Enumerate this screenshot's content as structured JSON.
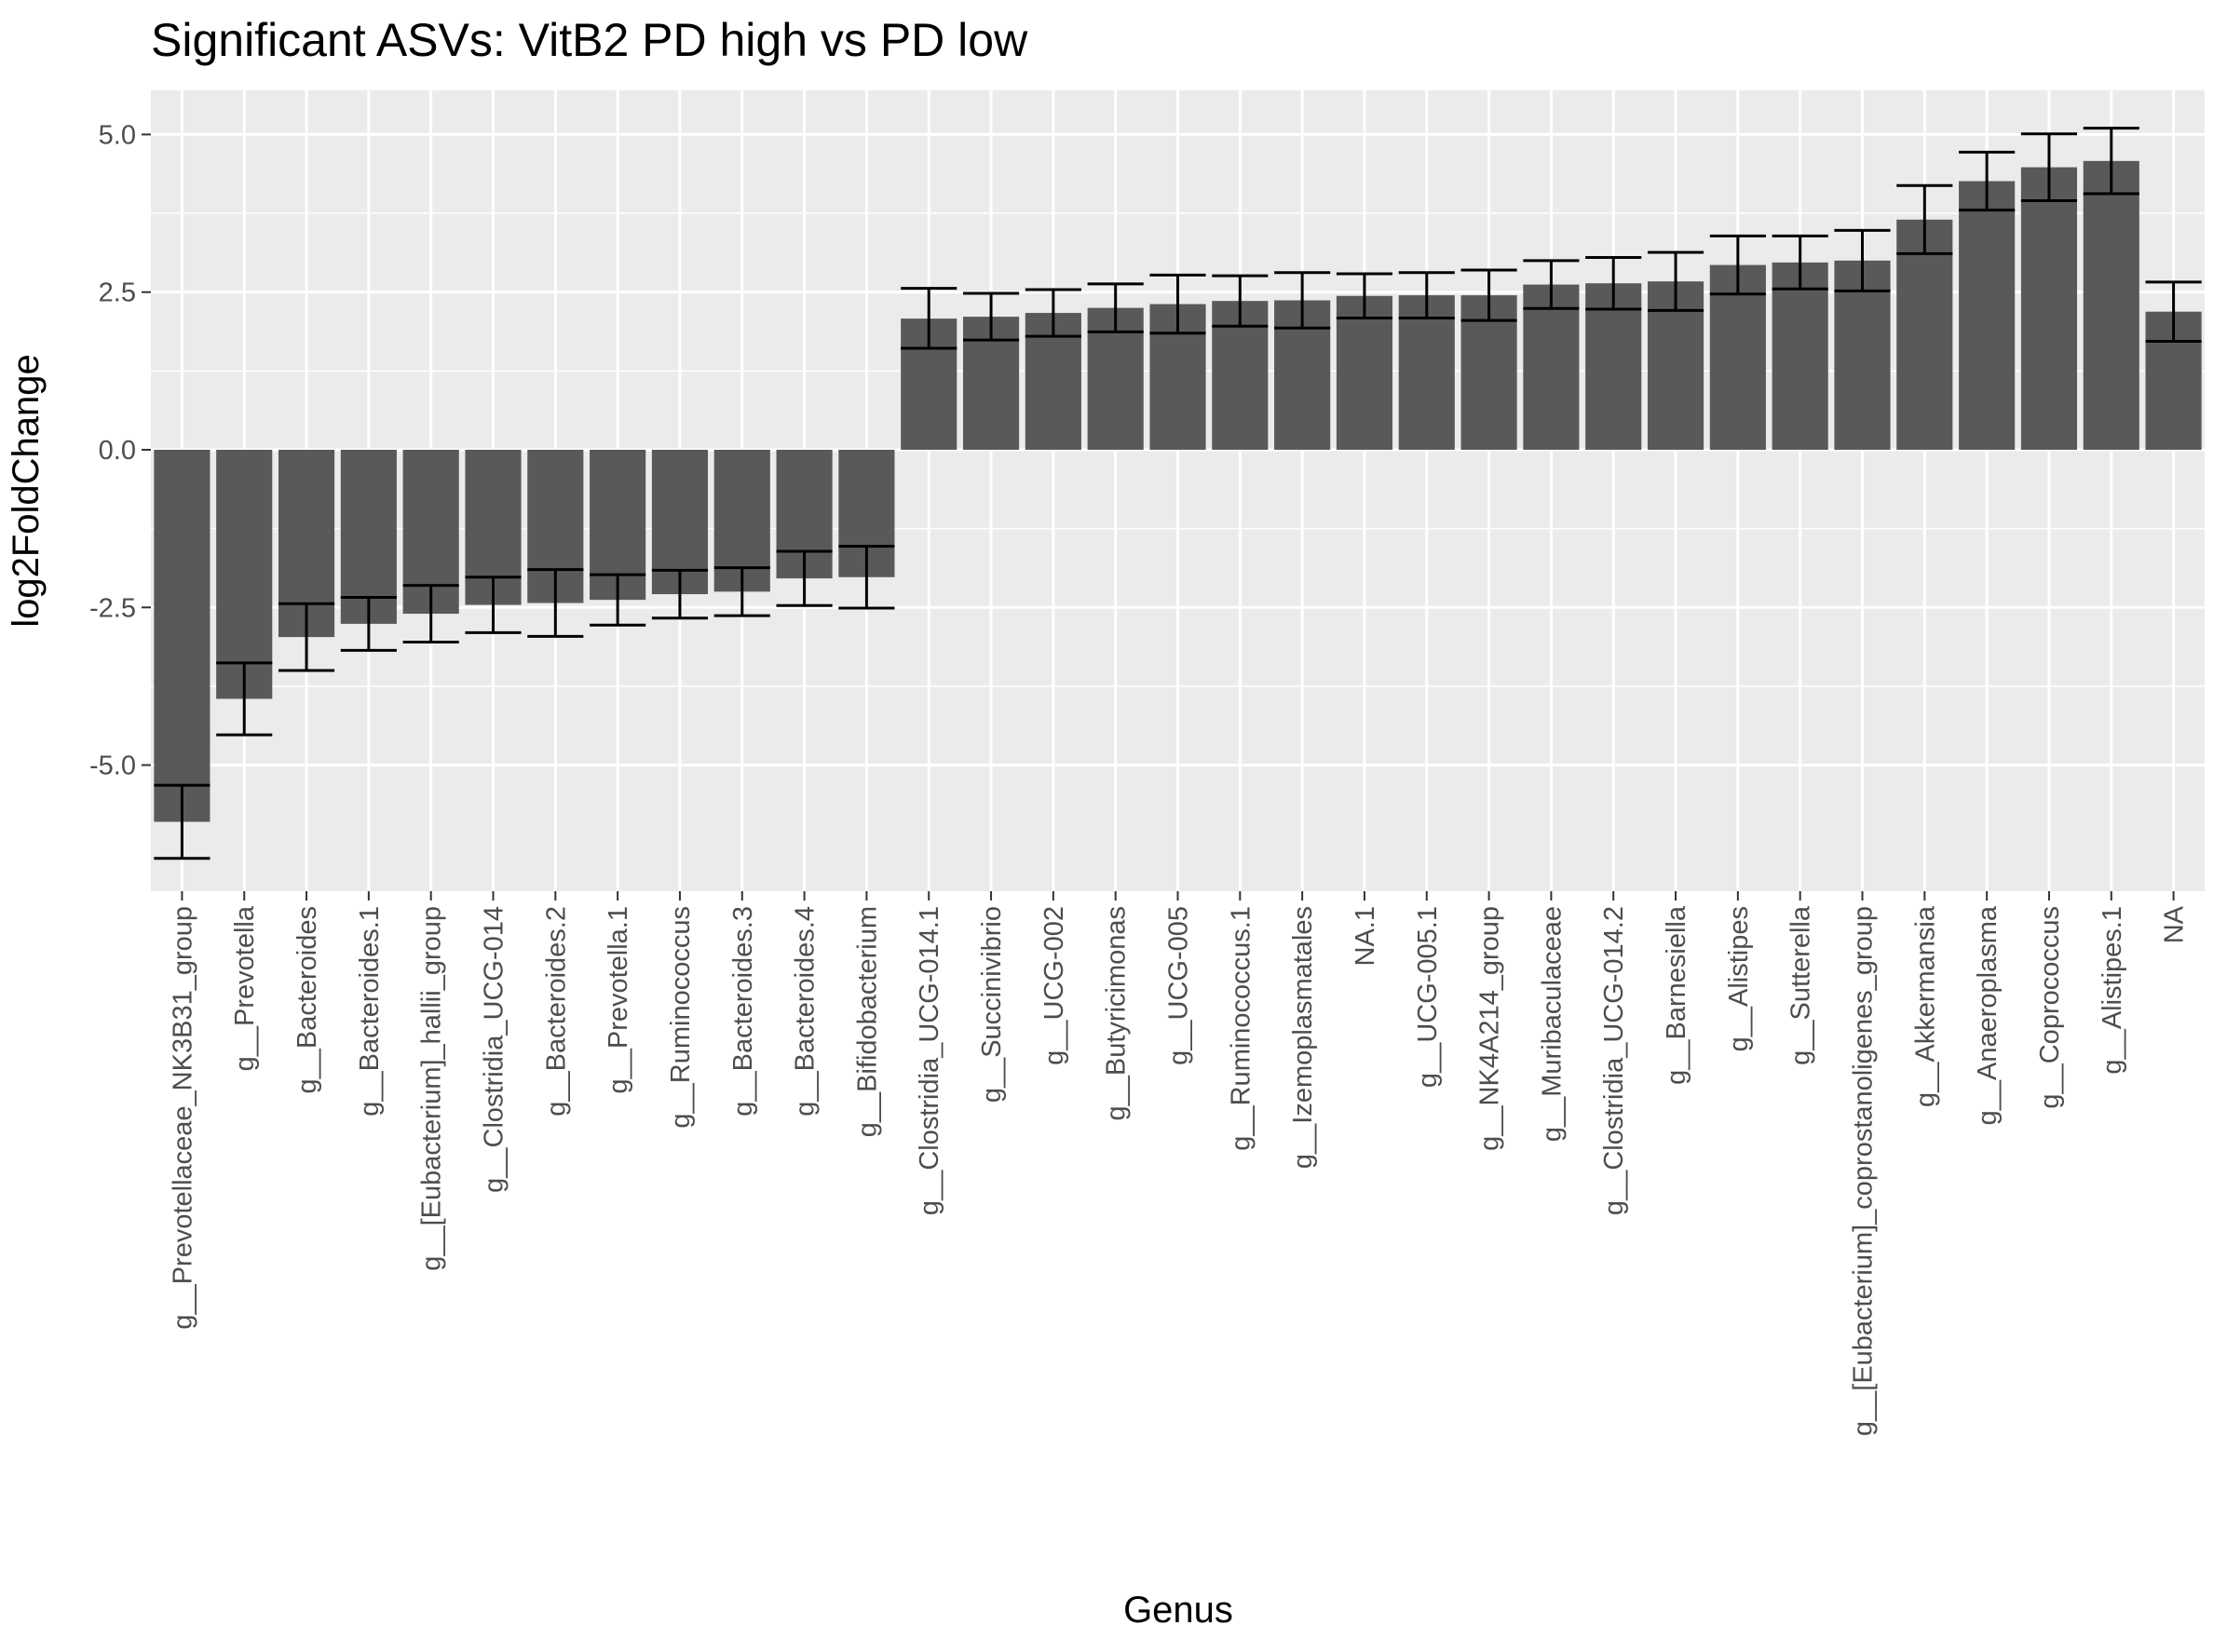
{
  "chart_data": {
    "type": "bar",
    "title": "Significant ASVs: VitB2 PD high vs PD low",
    "xlabel": "Genus",
    "ylabel": "log2FoldChange",
    "ylim": [
      -7.0,
      5.7
    ],
    "yticks": [
      -5.0,
      -2.5,
      0.0,
      2.5,
      5.0
    ],
    "ytick_labels": [
      "-5.0",
      "-2.5",
      "0.0",
      "2.5",
      "5.0"
    ],
    "grid": true,
    "legend": "none",
    "colors": {
      "bar": "#595959",
      "panel": "#ebebeb",
      "grid": "#ffffff",
      "errorbar": "#000000"
    },
    "categories": [
      "g__Prevotellaceae_NK3B31_group",
      "g__Prevotella",
      "g__Bacteroides",
      "g__Bacteroides.1",
      "g__[Eubacterium]_hallii_group",
      "g__Clostridia_UCG-014",
      "g__Bacteroides.2",
      "g__Prevotella.1",
      "g__Ruminococcus",
      "g__Bacteroides.3",
      "g__Bacteroides.4",
      "g__Bifidobacterium",
      "g__Clostridia_UCG-014.1",
      "g__Succinivibrio",
      "g__UCG-002",
      "g__Butyricimonas",
      "g__UCG-005",
      "g__Ruminococcus.1",
      "g__Izemoplasmatales",
      "NA.1",
      "g__UCG-005.1",
      "g__NK4A214_group",
      "g__Muribaculaceae",
      "g__Clostridia_UCG-014.2",
      "g__Barnesiella",
      "g__Alistipes",
      "g__Sutterella",
      "g__[Eubacterium]_coprostanoligenes_group",
      "g__Akkermansia",
      "g__Anaeroplasma",
      "g__Coprococcus",
      "g__Alistipes.1",
      "NA"
    ],
    "values": [
      -5.9,
      -3.95,
      -2.97,
      -2.76,
      -2.6,
      -2.46,
      -2.43,
      -2.38,
      -2.29,
      -2.25,
      -2.04,
      -2.02,
      2.08,
      2.11,
      2.17,
      2.25,
      2.31,
      2.36,
      2.37,
      2.44,
      2.45,
      2.45,
      2.62,
      2.64,
      2.67,
      2.93,
      2.97,
      3.0,
      3.65,
      4.26,
      4.48,
      4.58,
      2.19
    ],
    "error_low": [
      -6.48,
      -4.52,
      -3.5,
      -3.18,
      -3.05,
      -2.9,
      -2.96,
      -2.78,
      -2.67,
      -2.63,
      -2.47,
      -2.51,
      1.61,
      1.74,
      1.8,
      1.87,
      1.85,
      1.96,
      1.93,
      2.09,
      2.09,
      2.05,
      2.24,
      2.23,
      2.21,
      2.47,
      2.55,
      2.52,
      3.11,
      3.8,
      3.95,
      4.06,
      1.72
    ],
    "error_high": [
      -5.32,
      -3.38,
      -2.44,
      -2.34,
      -2.15,
      -2.02,
      -1.9,
      -1.98,
      -1.91,
      -1.87,
      -1.61,
      -1.53,
      2.56,
      2.48,
      2.54,
      2.63,
      2.77,
      2.76,
      2.81,
      2.79,
      2.81,
      2.85,
      3.0,
      3.05,
      3.13,
      3.39,
      3.39,
      3.48,
      4.19,
      4.72,
      5.01,
      5.1,
      2.66
    ]
  }
}
